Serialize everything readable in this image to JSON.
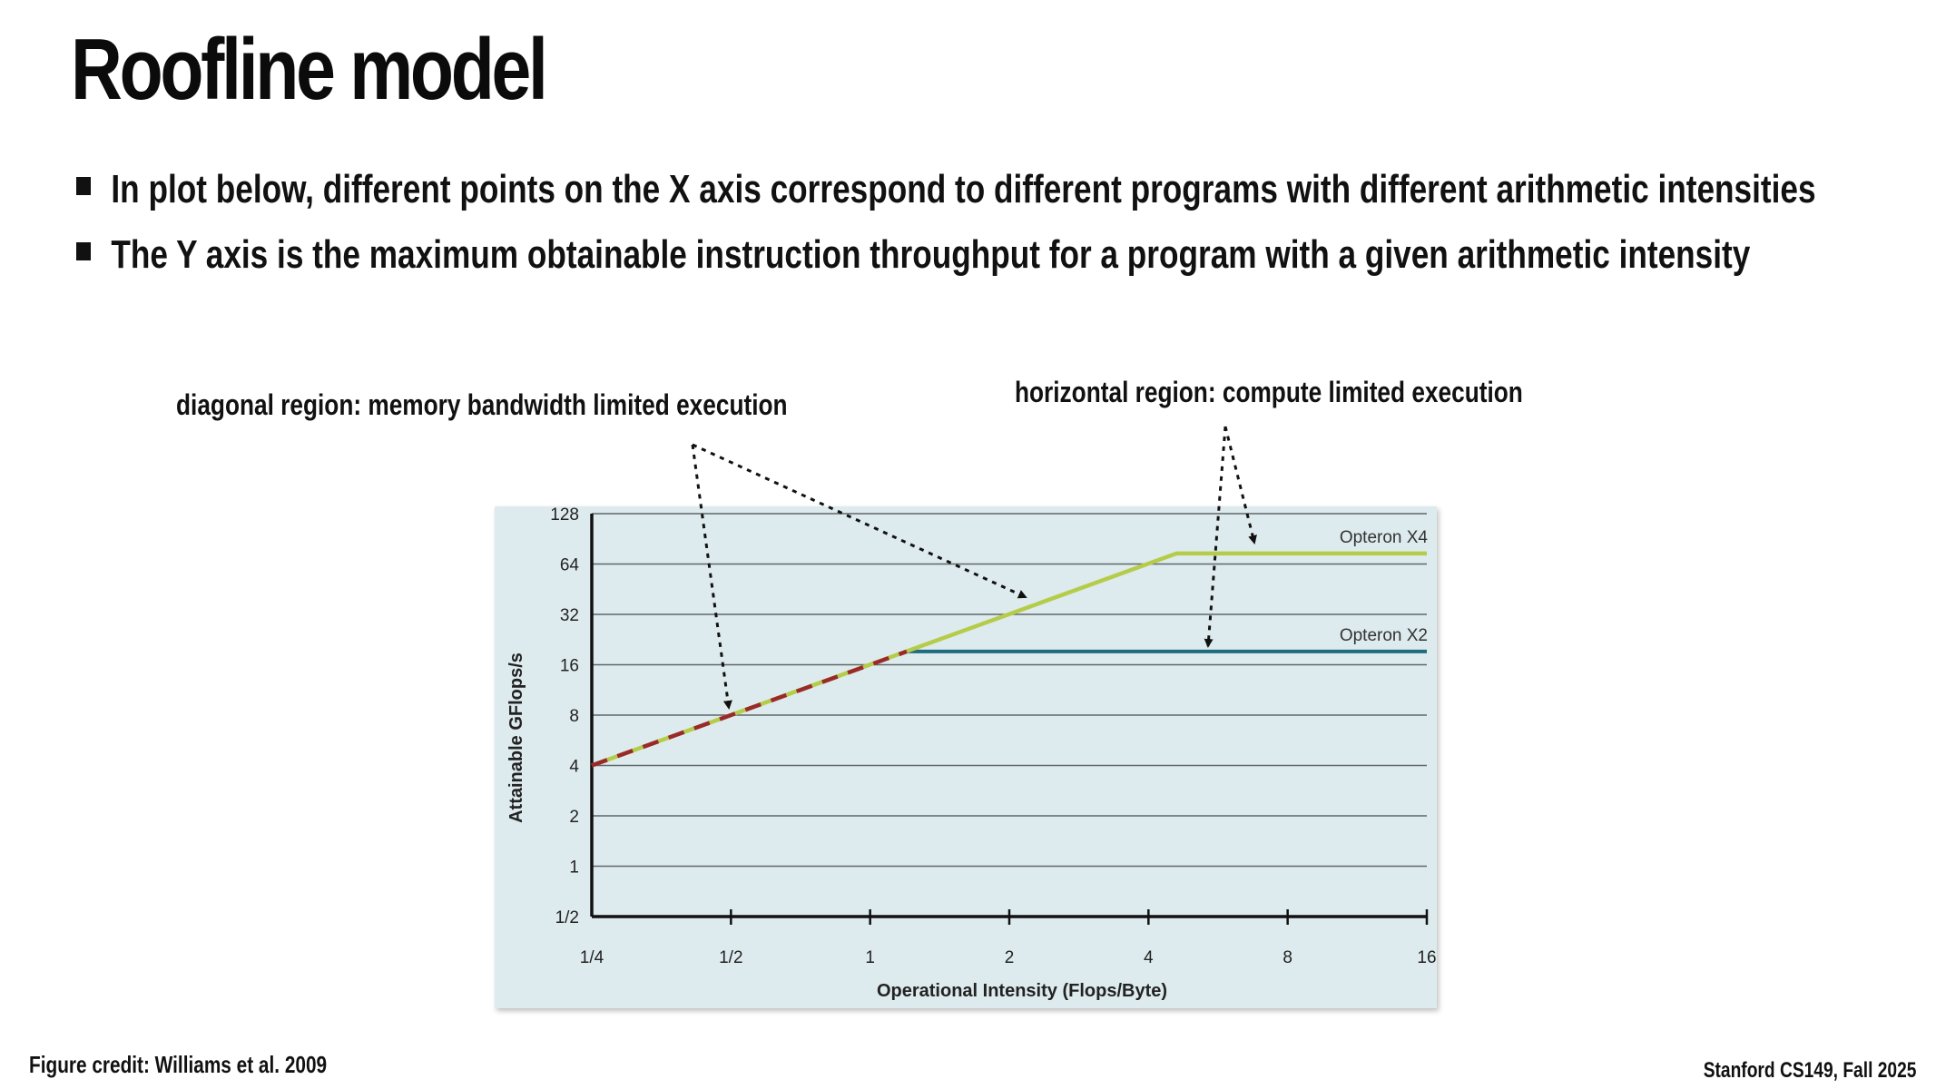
{
  "slide": {
    "title": "Roofline model",
    "bullets": [
      "In plot below, different points on the X axis correspond to different programs with different arithmetic intensities",
      "The Y axis is the maximum obtainable instruction throughput for a program with a given arithmetic intensity"
    ],
    "annotations": {
      "diagonal": "diagonal region: memory bandwidth limited execution",
      "horizontal": "horizontal region: compute limited execution"
    },
    "credit": "Figure credit: Williams et al. 2009",
    "course": "Stanford CS149, Fall 2025"
  },
  "chart_data": {
    "type": "line",
    "xlabel": "Operational Intensity (Flops/Byte)",
    "ylabel": "Attainable GFlops/s",
    "xscale": "log2",
    "yscale": "log2",
    "xlim": [
      0.25,
      16
    ],
    "ylim": [
      0.5,
      128
    ],
    "x_ticks": [
      0.25,
      0.5,
      1,
      2,
      4,
      8,
      16
    ],
    "x_tick_labels": [
      "1/4",
      "1/2",
      "1",
      "2",
      "4",
      "8",
      "16"
    ],
    "y_ticks": [
      0.5,
      1,
      2,
      4,
      8,
      16,
      32,
      64,
      128
    ],
    "y_tick_labels": [
      "1/2",
      "1",
      "2",
      "4",
      "8",
      "16",
      "32",
      "64",
      "128"
    ],
    "grid": true,
    "series": [
      {
        "name": "Opteron X4",
        "color": "#b5cc4a",
        "x": [
          0.25,
          4.6,
          16
        ],
        "y": [
          4,
          74,
          74
        ]
      },
      {
        "name": "Opteron X2",
        "color": "#1f6b80",
        "x": [
          0.25,
          1.2,
          16
        ],
        "y": [
          4,
          19.2,
          19.2
        ],
        "dashed_segment_color": "#9a2a2a"
      }
    ],
    "plot_background": "#deebee"
  }
}
